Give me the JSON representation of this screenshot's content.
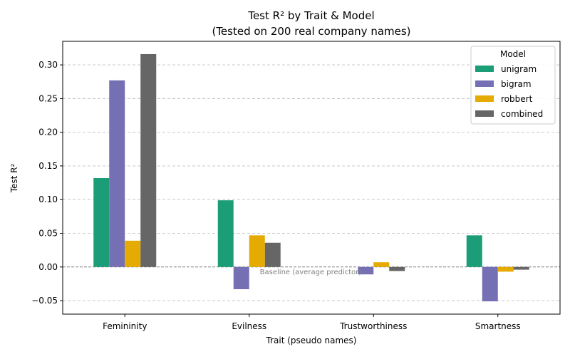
{
  "chart_data": {
    "type": "bar",
    "title": "Test R² by Trait & Model",
    "subtitle": "(Tested on 200 real company names)",
    "xlabel": "Trait (pseudo names)",
    "ylabel": "Test R²",
    "ylim": [
      -0.07,
      0.335
    ],
    "yticks": [
      -0.05,
      0.0,
      0.05,
      0.1,
      0.15,
      0.2,
      0.25,
      0.3
    ],
    "ytick_labels": [
      "−0.05",
      "0.00",
      "0.05",
      "0.10",
      "0.15",
      "0.20",
      "0.25",
      "0.30"
    ],
    "grid": "horizontal-dashed",
    "categories": [
      "Femininity",
      "Evilness",
      "Trustworthiness",
      "Smartness"
    ],
    "series": [
      {
        "name": "unigram",
        "color": "#1b9e77",
        "values": [
          0.132,
          0.099,
          0.0,
          0.047
        ]
      },
      {
        "name": "bigram",
        "color": "#7570b3",
        "values": [
          0.277,
          -0.033,
          -0.011,
          -0.051
        ]
      },
      {
        "name": "robbert",
        "color": "#e6ab02",
        "values": [
          0.039,
          0.047,
          0.007,
          -0.007
        ]
      },
      {
        "name": "combined",
        "color": "#666666",
        "values": [
          0.316,
          0.036,
          -0.006,
          -0.004
        ]
      }
    ],
    "baseline": {
      "value": 0.0,
      "label": "Baseline (average predictor)"
    },
    "legend": {
      "title": "Model",
      "placement": "top-right"
    }
  }
}
